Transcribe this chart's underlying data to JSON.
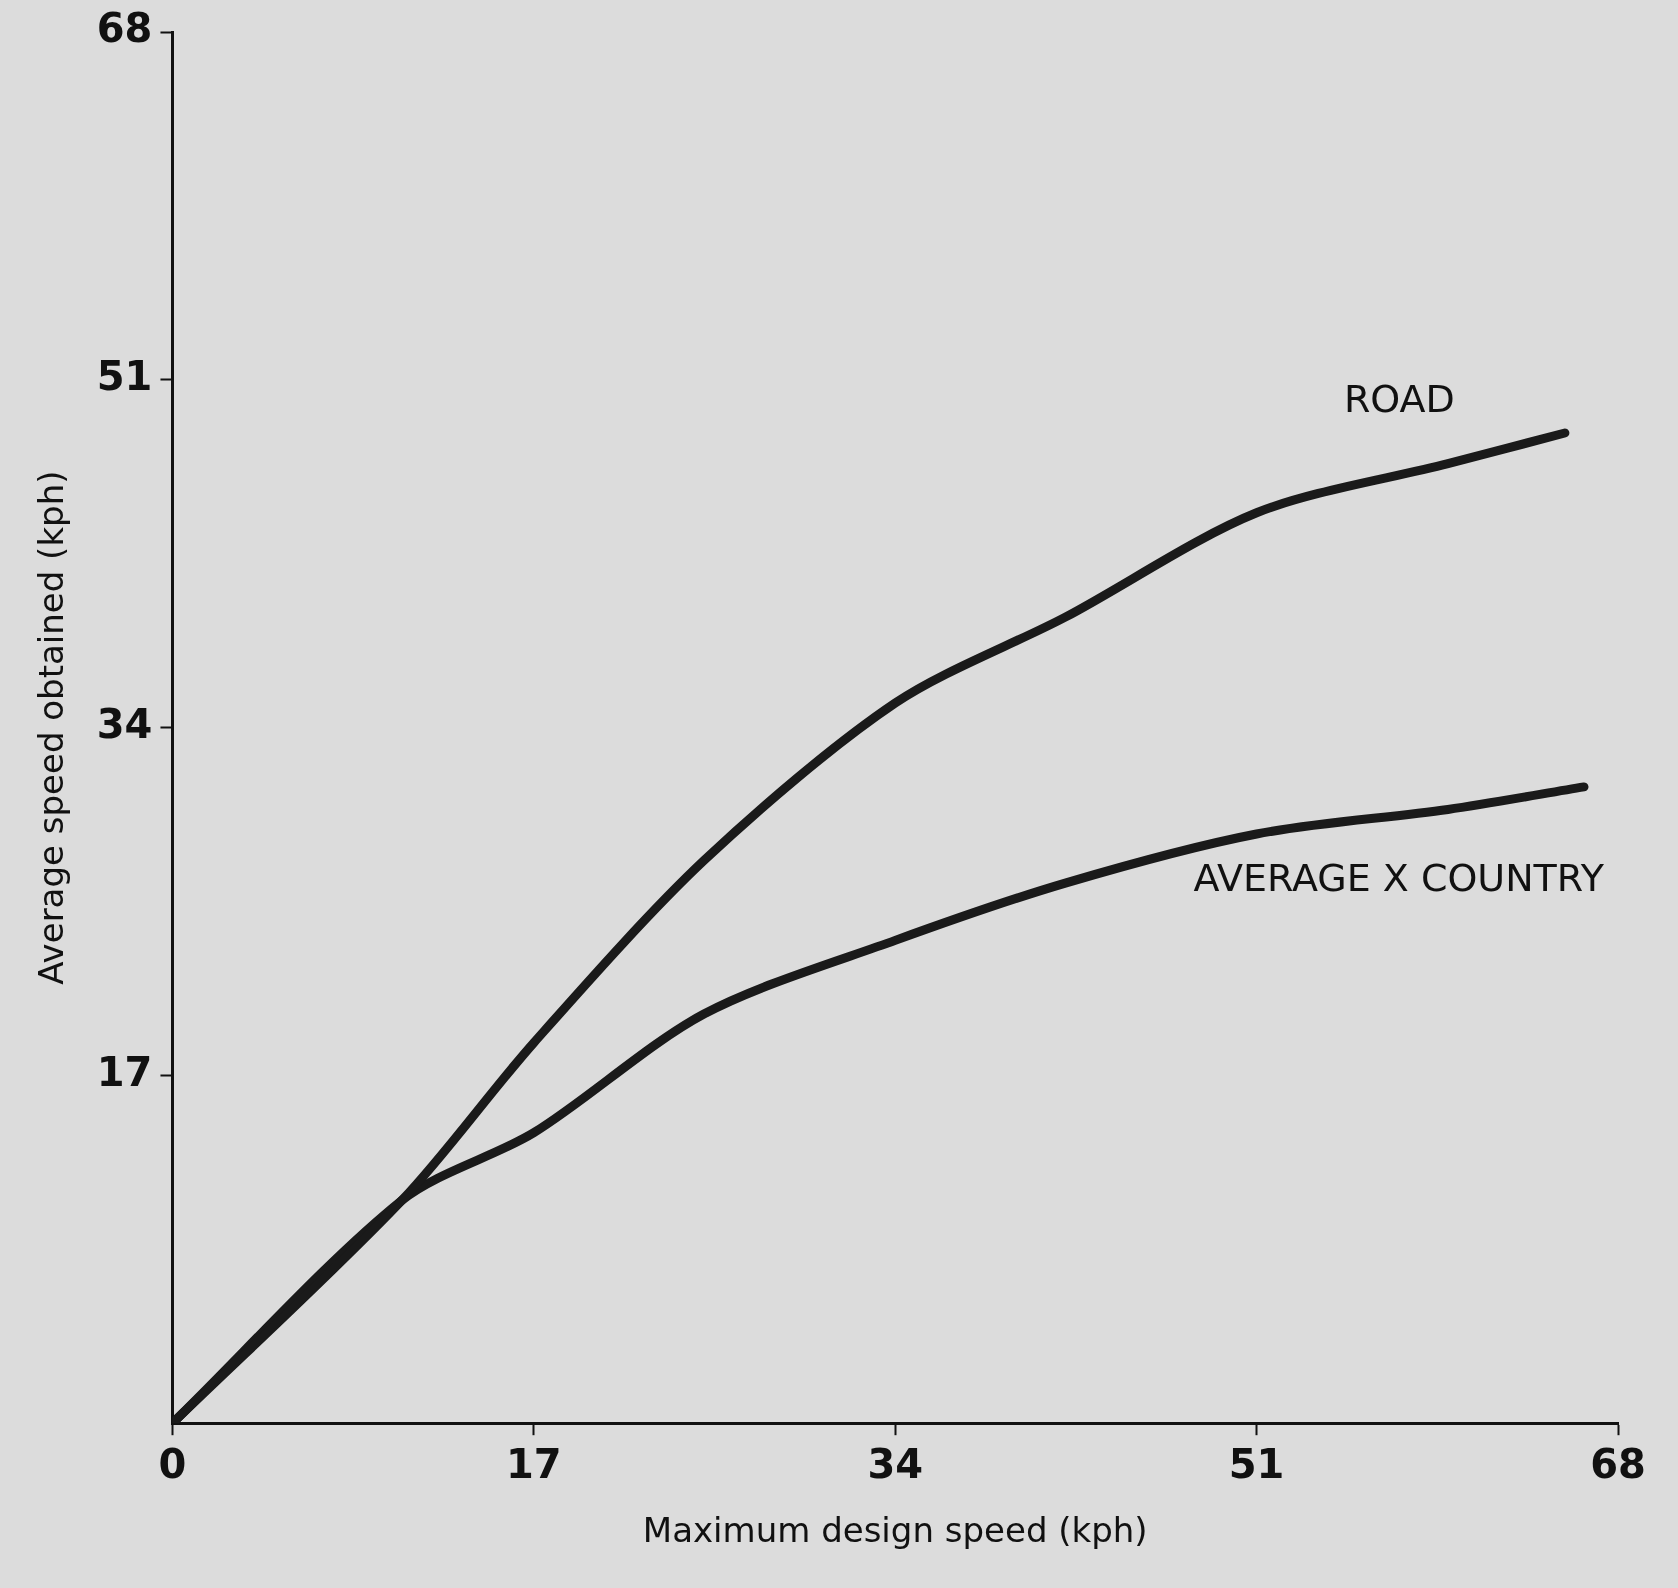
{
  "chart_data": {
    "type": "line",
    "xlabel": "Maximum design speed (kph)",
    "ylabel": "Average speed obtained (kph)",
    "xlim": [
      0,
      68
    ],
    "ylim": [
      0,
      68
    ],
    "xticks": [
      0,
      17,
      34,
      51,
      68
    ],
    "yticks": [
      17,
      34,
      51,
      68
    ],
    "grid": false,
    "legend": false,
    "marker": "none",
    "line_style": "solid",
    "series": [
      {
        "name": "ROAD",
        "color": "#1a1a1a",
        "x": [
          0,
          10.8,
          17,
          25,
          34,
          42,
          51,
          60,
          65.5
        ],
        "values": [
          0,
          10.9,
          18.6,
          27.5,
          35.2,
          39.4,
          44.5,
          46.9,
          48.4
        ]
      },
      {
        "name": "AVERAGE X COUNTRY",
        "color": "#1a1a1a",
        "x": [
          0,
          10.8,
          17,
          25,
          34,
          42,
          51,
          60,
          66.4
        ],
        "values": [
          0,
          10.9,
          14.2,
          20,
          23.6,
          26.4,
          28.8,
          30,
          31.1
        ]
      }
    ]
  }
}
